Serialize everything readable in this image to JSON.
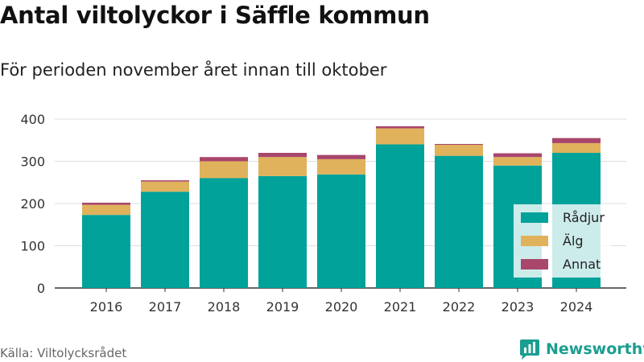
{
  "header": {
    "title": "Antal viltolyckor i Säffle kommun",
    "subtitle": "För perioden november året innan till oktober"
  },
  "footer": {
    "source": "Källa: Viltolycksrådet",
    "brand": "Newsworthy"
  },
  "colors": {
    "radjur": "#00a29a",
    "alg": "#e0b25c",
    "annat": "#a8466c",
    "grid": "#dddddd",
    "brand": "#1a9e91"
  },
  "chart_data": {
    "type": "bar",
    "stacked": true,
    "categories": [
      "2016",
      "2017",
      "2018",
      "2019",
      "2020",
      "2021",
      "2022",
      "2023",
      "2024"
    ],
    "series": [
      {
        "name": "Rådjur",
        "values": [
          173,
          228,
          260,
          265,
          269,
          340,
          313,
          290,
          320
        ]
      },
      {
        "name": "Älg",
        "values": [
          24,
          24,
          40,
          45,
          36,
          38,
          26,
          20,
          23
        ]
      },
      {
        "name": "Annat",
        "values": [
          5,
          3,
          10,
          10,
          10,
          5,
          2,
          9,
          12
        ]
      }
    ],
    "ylim": [
      0,
      400
    ],
    "yticks": [
      "0",
      "100",
      "200",
      "300",
      "400"
    ],
    "grid": true,
    "legend_position": "right"
  }
}
